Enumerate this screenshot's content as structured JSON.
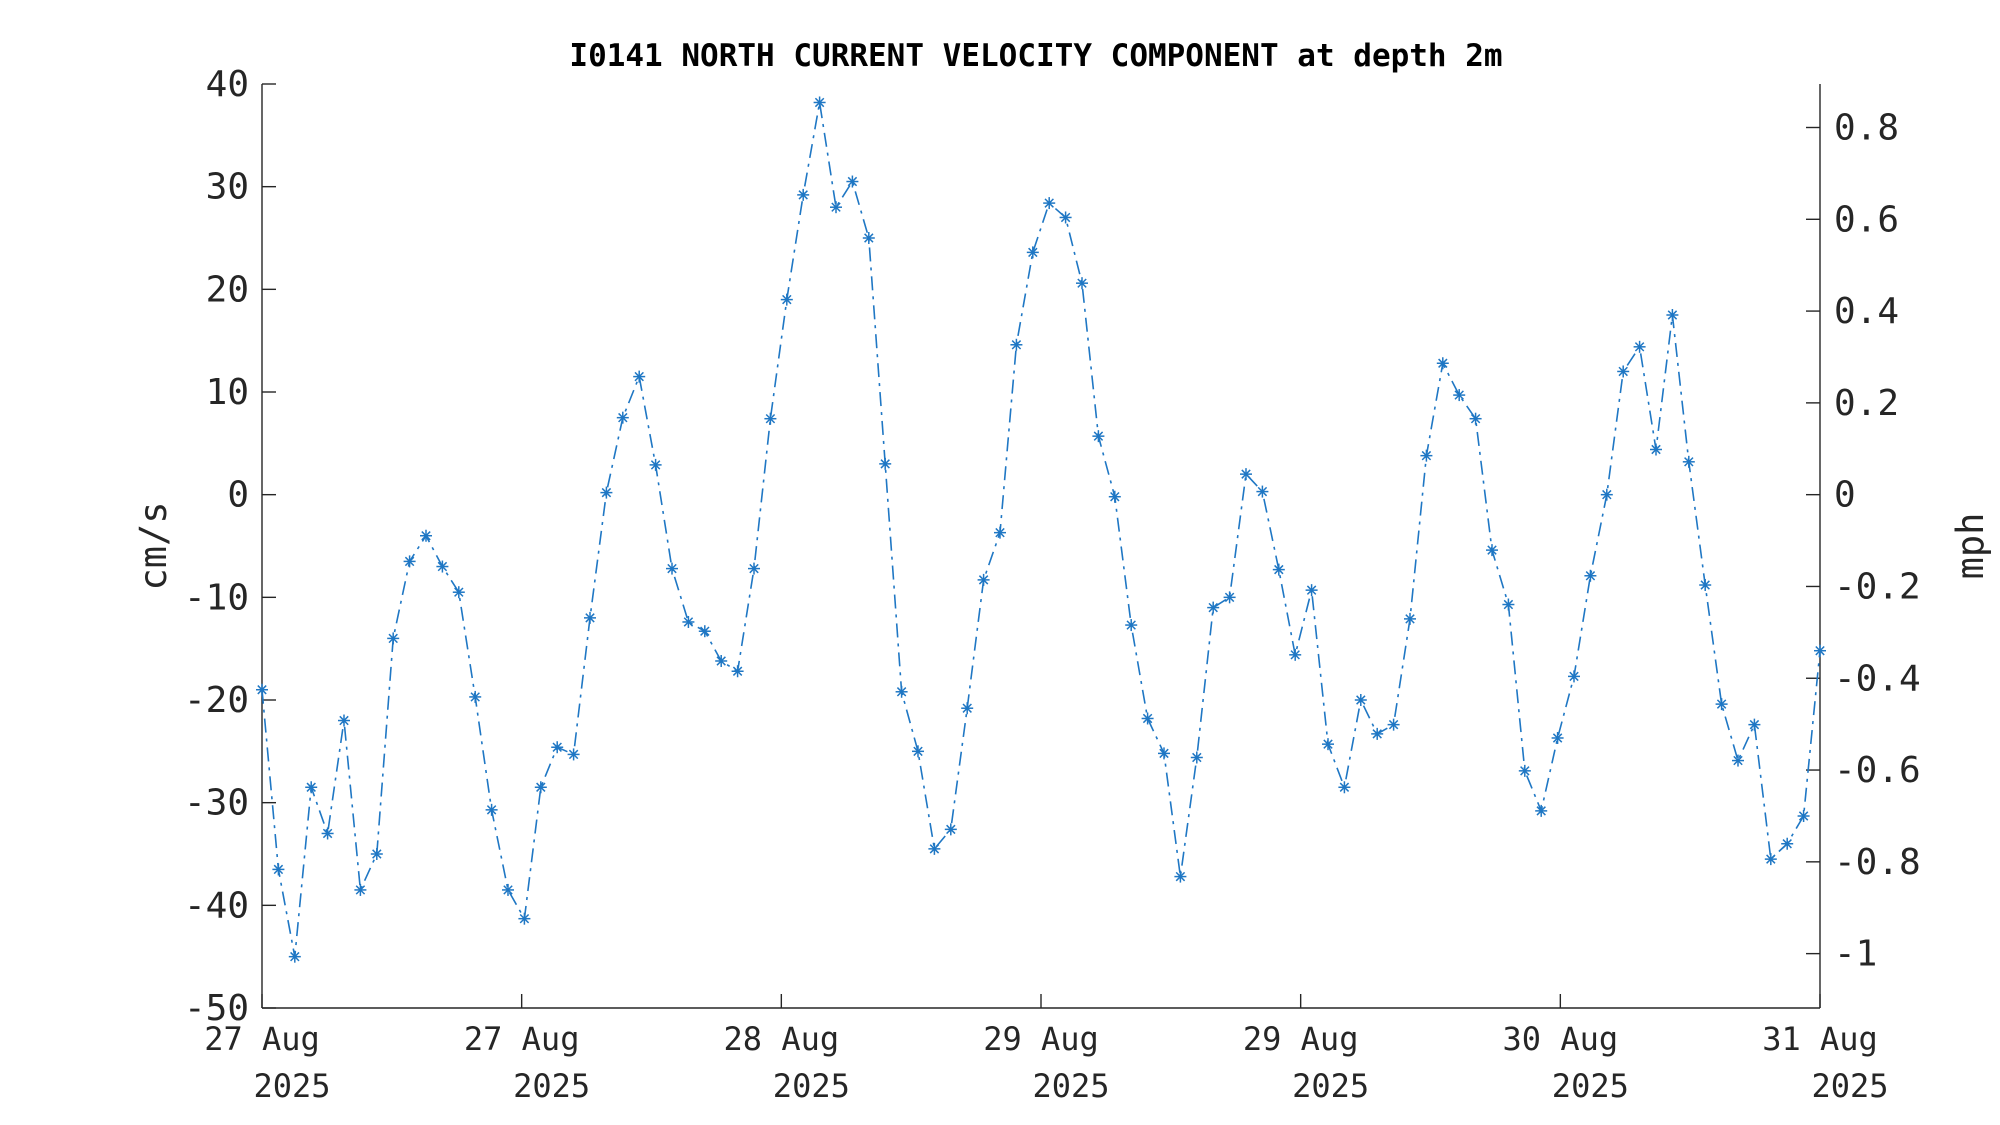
{
  "chart_data": {
    "type": "line",
    "title": "I0141 NORTH CURRENT VELOCITY COMPONENT at depth 2m",
    "xlabel": "",
    "ylabel": "cm/s",
    "ylabel_right": "mph",
    "ylim": [
      -50,
      40
    ],
    "yticks": [
      -50,
      -40,
      -30,
      -20,
      -10,
      0,
      10,
      20,
      30,
      40
    ],
    "yticks_right": [
      "0.8",
      "0.6",
      "0.4",
      "0.2",
      "0",
      "-0.2",
      "-0.4",
      "-0.6",
      "-0.8",
      "-1"
    ],
    "xticks": [
      {
        "line1": "27 Aug",
        "line2": "2025"
      },
      {
        "line1": "27 Aug",
        "line2": "2025"
      },
      {
        "line1": "28 Aug",
        "line2": "2025"
      },
      {
        "line1": "29 Aug",
        "line2": "2025"
      },
      {
        "line1": "29 Aug",
        "line2": "2025"
      },
      {
        "line1": "30 Aug",
        "line2": "2025"
      },
      {
        "line1": "31 Aug",
        "line2": "2025"
      }
    ],
    "grid": false,
    "series": [
      {
        "color": "#1f77c4",
        "values": [
          -19,
          -36.5,
          -45,
          -28.5,
          -33,
          -22,
          -38.5,
          -35,
          -14,
          -6.5,
          -4,
          -7,
          -9.5,
          -19.7,
          -30.7,
          -38.5,
          -41.3,
          -28.5,
          -24.6,
          -25.3,
          -12,
          0.2,
          7.5,
          11.5,
          2.9,
          -7.2,
          -12.4,
          -13.3,
          -16.2,
          -17.2,
          -7.2,
          7.4,
          19,
          29.2,
          38.2,
          28,
          30.5,
          25,
          3,
          -19.2,
          -25,
          -34.5,
          -32.6,
          -20.8,
          -8.3,
          -3.7,
          14.6,
          23.6,
          28.4,
          27,
          20.6,
          5.7,
          -0.2,
          -12.7,
          -21.8,
          -25.2,
          -37.2,
          -25.6,
          -11,
          -10,
          2,
          0.3,
          -7.3,
          -15.6,
          -9.3,
          -24.3,
          -28.5,
          -20,
          -23.3,
          -22.4,
          -12.1,
          3.8,
          12.8,
          9.7,
          7.4,
          -5.4,
          -10.7,
          -26.9,
          -30.8,
          -23.7,
          -17.7,
          -7.9,
          0,
          12,
          14.4,
          4.4,
          17.5,
          3.2,
          -8.8,
          -20.4,
          -25.9,
          -22.4,
          -35.5,
          -34,
          -31.3,
          -15.2
        ]
      }
    ]
  }
}
